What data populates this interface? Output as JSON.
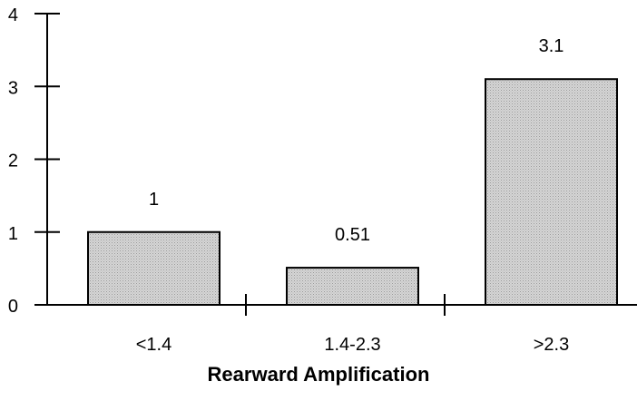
{
  "chart_data": {
    "type": "bar",
    "categories": [
      "<1.4",
      "1.4-2.3",
      ">2.3"
    ],
    "values": [
      1,
      0.51,
      3.1
    ],
    "data_labels": [
      "1",
      "0.51",
      "3.1"
    ],
    "title": "",
    "xlabel": "Rearward Amplification",
    "ylabel": "",
    "ylim": [
      0,
      4
    ],
    "yticks": [
      "0",
      "1",
      "2",
      "3",
      "4"
    ],
    "grid": false,
    "legend": "none",
    "bar_fill": "#d3d3d3",
    "bar_stroke": "#000000"
  }
}
